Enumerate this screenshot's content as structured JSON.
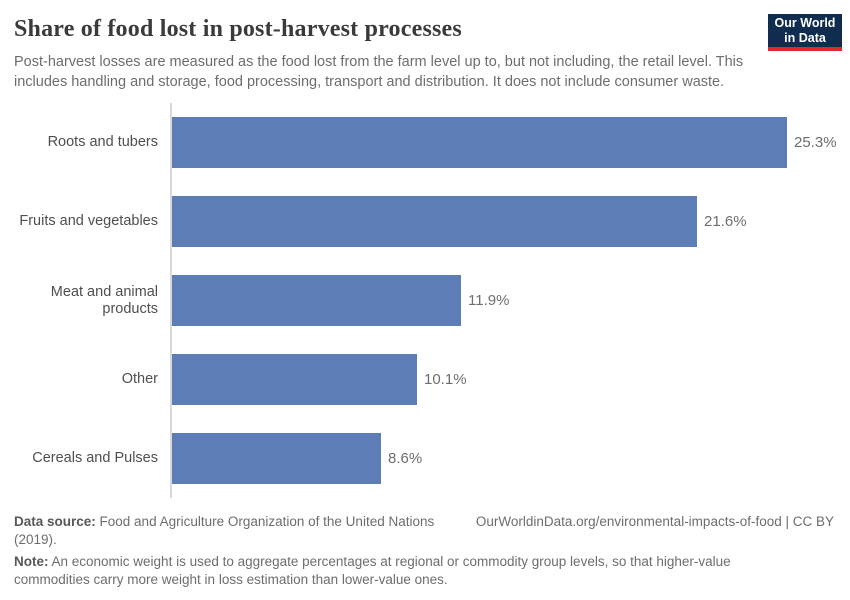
{
  "header": {
    "title": "Share of food lost in post-harvest processes",
    "subtitle": "Post-harvest losses are measured as the food lost from the farm level up to, but not including, the retail level. This includes handling and storage, food processing, transport and distribution. It does not include consumer waste.",
    "logo": {
      "line1": "Our World",
      "line2": "in Data"
    }
  },
  "chart_data": {
    "type": "bar",
    "orientation": "horizontal",
    "title": "Share of food lost in post-harvest processes",
    "categories": [
      "Roots and tubers",
      "Fruits and vegetables",
      "Meat and animal products",
      "Other",
      "Cereals and Pulses"
    ],
    "values": [
      25.3,
      21.6,
      11.9,
      10.1,
      8.6
    ],
    "value_labels": [
      "25.3%",
      "21.6%",
      "11.9%",
      "10.1%",
      "8.6%"
    ],
    "unit": "%",
    "xlim": [
      0,
      26.3
    ],
    "grid": false,
    "legend": "none",
    "bar_color": "#5c7db5",
    "axis_color": "#d9d9d9"
  },
  "footer": {
    "data_source_label": "Data source:",
    "data_source_text": " Food and Agriculture Organization of the United Nations (2019).",
    "link_text": "OurWorldinData.org/environmental-impacts-of-food | CC BY",
    "note_label": "Note:",
    "note_text": " An economic weight is used to aggregate percentages at regional or commodity group levels, so that higher-value commodities carry more weight in loss estimation than lower-value ones."
  },
  "colors": {
    "bar": "#5c7db5",
    "logo_bg": "#102d50",
    "logo_underline": "#dc2a2a",
    "title_text": "#3a3a3a",
    "subtitle_text": "#6d6d6d",
    "category_label_text": "#4f4f4f",
    "value_label_text": "#6e6e6e"
  }
}
